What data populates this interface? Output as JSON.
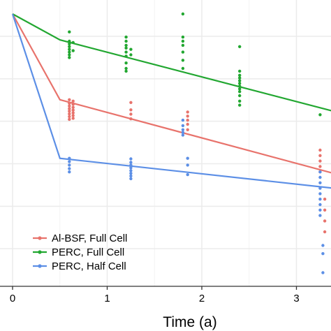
{
  "chart_data": {
    "type": "scatter",
    "title": "",
    "xlabel": "Time (a)",
    "ylabel": "",
    "xlim": [
      0,
      3.4
    ],
    "ylim": [
      0,
      1
    ],
    "x_ticks": [
      "0",
      "1",
      "2",
      "3"
    ],
    "x_tick_values": [
      0,
      1,
      2,
      3
    ],
    "y_grid_values": [
      0.138,
      0.294,
      0.45,
      0.606,
      0.762,
      0.918
    ],
    "grid": true,
    "legend_position": "bottom-left",
    "series": [
      {
        "name": "Al-BSF, Full Cell",
        "color": "#E8736C",
        "fit_line": [
          [
            0,
            1.0
          ],
          [
            0.5,
            0.685
          ],
          [
            3.4,
            0.414
          ]
        ],
        "points": [
          [
            0.6,
            0.685
          ],
          [
            0.6,
            0.672
          ],
          [
            0.6,
            0.662
          ],
          [
            0.6,
            0.652
          ],
          [
            0.6,
            0.643
          ],
          [
            0.6,
            0.633
          ],
          [
            0.6,
            0.623
          ],
          [
            0.6,
            0.613
          ],
          [
            0.64,
            0.68
          ],
          [
            0.64,
            0.668
          ],
          [
            0.64,
            0.657
          ],
          [
            0.64,
            0.647
          ],
          [
            0.64,
            0.637
          ],
          [
            0.64,
            0.627
          ],
          [
            0.64,
            0.617
          ],
          [
            1.25,
            0.675
          ],
          [
            1.25,
            0.648
          ],
          [
            1.25,
            0.632
          ],
          [
            1.25,
            0.615
          ],
          [
            1.85,
            0.64
          ],
          [
            1.85,
            0.625
          ],
          [
            1.85,
            0.61
          ],
          [
            1.85,
            0.595
          ],
          [
            1.85,
            0.575
          ],
          [
            3.25,
            0.5
          ],
          [
            3.25,
            0.48
          ],
          [
            3.25,
            0.46
          ],
          [
            3.25,
            0.44
          ],
          [
            3.25,
            0.42
          ],
          [
            3.3,
            0.32
          ],
          [
            3.3,
            0.28
          ],
          [
            3.3,
            0.24
          ],
          [
            3.3,
            0.2
          ]
        ]
      },
      {
        "name": "PERC, Full Cell",
        "color": "#22A731",
        "fit_line": [
          [
            0,
            1.0
          ],
          [
            0.5,
            0.905
          ],
          [
            3.4,
            0.642
          ]
        ],
        "points": [
          [
            0.6,
            0.934
          ],
          [
            0.6,
            0.9
          ],
          [
            0.6,
            0.89
          ],
          [
            0.6,
            0.88
          ],
          [
            0.6,
            0.87
          ],
          [
            0.6,
            0.86
          ],
          [
            0.6,
            0.85
          ],
          [
            0.6,
            0.84
          ],
          [
            0.64,
            0.895
          ],
          [
            0.64,
            0.865
          ],
          [
            1.2,
            0.915
          ],
          [
            1.2,
            0.9
          ],
          [
            1.2,
            0.885
          ],
          [
            1.2,
            0.875
          ],
          [
            1.2,
            0.86
          ],
          [
            1.2,
            0.845
          ],
          [
            1.2,
            0.82
          ],
          [
            1.2,
            0.8
          ],
          [
            1.2,
            0.79
          ],
          [
            1.25,
            0.87
          ],
          [
            1.25,
            0.85
          ],
          [
            1.8,
            1.0
          ],
          [
            1.8,
            0.915
          ],
          [
            1.8,
            0.9
          ],
          [
            1.8,
            0.885
          ],
          [
            1.8,
            0.86
          ],
          [
            1.8,
            0.83
          ],
          [
            1.8,
            0.8
          ],
          [
            2.4,
            0.88
          ],
          [
            2.4,
            0.79
          ],
          [
            2.4,
            0.775
          ],
          [
            2.4,
            0.765
          ],
          [
            2.4,
            0.755
          ],
          [
            2.4,
            0.745
          ],
          [
            2.4,
            0.735
          ],
          [
            2.4,
            0.725
          ],
          [
            2.4,
            0.715
          ],
          [
            2.4,
            0.7
          ],
          [
            2.4,
            0.68
          ],
          [
            2.4,
            0.665
          ],
          [
            3.25,
            0.63
          ]
        ]
      },
      {
        "name": "PERC, Half Cell",
        "color": "#5C8FE6",
        "fit_line": [
          [
            0,
            1.0
          ],
          [
            0.5,
            0.47
          ],
          [
            3.4,
            0.36
          ]
        ],
        "points": [
          [
            0.6,
            0.47
          ],
          [
            0.6,
            0.458
          ],
          [
            0.6,
            0.445
          ],
          [
            0.6,
            0.432
          ],
          [
            0.6,
            0.42
          ],
          [
            1.25,
            0.468
          ],
          [
            1.25,
            0.455
          ],
          [
            1.25,
            0.445
          ],
          [
            1.25,
            0.435
          ],
          [
            1.25,
            0.425
          ],
          [
            1.25,
            0.415
          ],
          [
            1.25,
            0.405
          ],
          [
            1.25,
            0.395
          ],
          [
            1.8,
            0.61
          ],
          [
            1.8,
            0.59
          ],
          [
            1.8,
            0.575
          ],
          [
            1.8,
            0.565
          ],
          [
            1.8,
            0.555
          ],
          [
            1.85,
            0.47
          ],
          [
            1.85,
            0.445
          ],
          [
            1.85,
            0.41
          ],
          [
            3.25,
            0.42
          ],
          [
            3.25,
            0.4
          ],
          [
            3.25,
            0.38
          ],
          [
            3.25,
            0.36
          ],
          [
            3.25,
            0.34
          ],
          [
            3.25,
            0.32
          ],
          [
            3.25,
            0.3
          ],
          [
            3.25,
            0.28
          ],
          [
            3.25,
            0.26
          ],
          [
            3.28,
            0.15
          ],
          [
            3.28,
            0.12
          ],
          [
            3.28,
            0.05
          ]
        ]
      }
    ]
  }
}
